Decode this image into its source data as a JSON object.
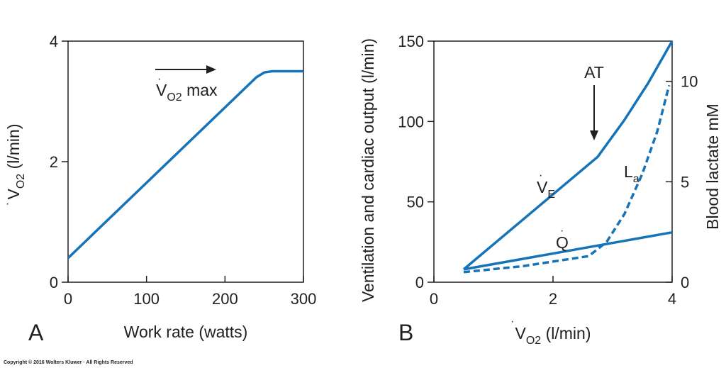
{
  "copyright": "Copyright © 2016 Wolters Kluwer · All Rights Reserved",
  "colors": {
    "line": "#1673b8",
    "axis": "#231f20"
  },
  "chart_data": [
    {
      "type": "line",
      "panel_label": "A",
      "xlabel": "Work rate (watts)",
      "ylabel": {
        "main": "V",
        "sub": "O2",
        "unit": " (l/min)"
      },
      "xlim": [
        0,
        300
      ],
      "ylim": [
        0,
        4
      ],
      "xticks": [
        0,
        100,
        200,
        300
      ],
      "yticks": [
        0,
        2,
        4
      ],
      "grid": false,
      "series": [
        {
          "x": [
            0,
            240,
            250,
            260,
            300
          ],
          "y": [
            0.4,
            3.4,
            3.48,
            3.5,
            3.5
          ]
        }
      ],
      "annotations": [
        {
          "text": "V",
          "sub": "O2",
          "suffix": " max",
          "x": 145,
          "y": 3.12,
          "arrow_from": [
            110,
            3.5
          ],
          "arrow_to": [
            180,
            3.5
          ]
        }
      ]
    },
    {
      "type": "line",
      "panel_label": "B",
      "xlabel": {
        "main": "V",
        "sub": "O2",
        "unit": " (l/min)"
      },
      "ylabel": "Ventilation and cardiac output (l/min)",
      "y2label": "Blood lactate mM",
      "xlim": [
        0,
        4
      ],
      "ylim": [
        0,
        150
      ],
      "y2lim": [
        0,
        12
      ],
      "xticks": [
        0,
        2,
        4
      ],
      "yticks": [
        0,
        50,
        100,
        150
      ],
      "y2ticks": [
        0,
        5,
        10
      ],
      "grid": false,
      "series": [
        {
          "name": "V",
          "sub": "E",
          "axis": "left",
          "style": "solid",
          "x": [
            0.5,
            2.75,
            3.2,
            3.6,
            4.0
          ],
          "y": [
            8,
            78,
            101,
            124,
            150
          ]
        },
        {
          "name": "Q",
          "axis": "left",
          "style": "solid",
          "x": [
            0.5,
            4.0
          ],
          "y": [
            8,
            31
          ]
        },
        {
          "name": "L",
          "sub": "a",
          "axis": "right",
          "style": "dashed",
          "x": [
            0.5,
            1.5,
            2.6,
            2.9,
            3.2,
            3.5,
            3.75,
            3.95
          ],
          "y": [
            0.5,
            0.8,
            1.3,
            2.0,
            3.4,
            5.4,
            7.5,
            9.8
          ]
        }
      ],
      "annotations": [
        {
          "text": "AT",
          "x": 2.75,
          "arrow_to_y": 86
        }
      ]
    }
  ]
}
